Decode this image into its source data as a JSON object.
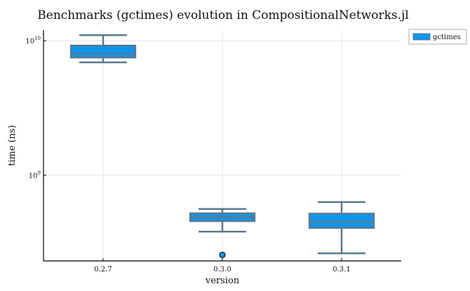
{
  "chart_data": {
    "type": "box",
    "title": "Benchmarks (gctimes) evolution in CompositionalNetworks.jl",
    "xlabel": "version",
    "ylabel": "time (ns)",
    "yscale": "log10",
    "ylim": [
      230000000,
      12000000000
    ],
    "grid": true,
    "legend_position": "top-right outside",
    "categories": [
      "0.2.7",
      "0.3.0",
      "0.3.1"
    ],
    "y_ticks": [
      {
        "value": 1000000000,
        "base": "10",
        "exp": "9"
      },
      {
        "value": 10000000000,
        "base": "10",
        "exp": "10"
      }
    ],
    "series": [
      {
        "name": "gctimes",
        "color": "#0f95f0",
        "edge_color": "#5a7a8d",
        "boxes": [
          {
            "category": "0.2.7",
            "whisker_low": 6900000000,
            "q1": 7500000000,
            "median": 8000000000,
            "q3": 9200000000,
            "whisker_high": 11000000000,
            "outliers": []
          },
          {
            "category": "0.3.0",
            "whisker_low": 380000000,
            "q1": 455000000,
            "median": 490000000,
            "q3": 520000000,
            "whisker_high": 560000000,
            "outliers": [
              255000000
            ]
          },
          {
            "category": "0.3.1",
            "whisker_low": 262000000,
            "q1": 405000000,
            "median": 450000000,
            "q3": 517000000,
            "whisker_high": 630000000,
            "outliers": []
          }
        ]
      }
    ]
  }
}
